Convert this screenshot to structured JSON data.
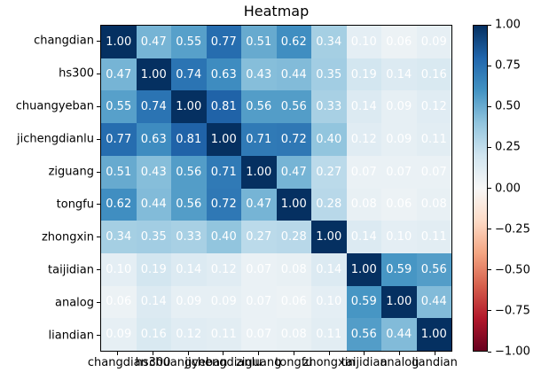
{
  "figure": {
    "background": "#ffffff"
  },
  "chart_data": {
    "type": "heatmap",
    "title": "Heatmap",
    "xlabel": "",
    "ylabel": "",
    "categories": [
      "changdian",
      "hs300",
      "chuangyeban",
      "jichengdianlu",
      "ziguang",
      "tongfu",
      "zhongxin",
      "taijidian",
      "analog",
      "liandian"
    ],
    "matrix": [
      [
        1.0,
        0.47,
        0.55,
        0.77,
        0.51,
        0.62,
        0.34,
        0.1,
        0.06,
        0.09
      ],
      [
        0.47,
        1.0,
        0.74,
        0.63,
        0.43,
        0.44,
        0.35,
        0.19,
        0.14,
        0.16
      ],
      [
        0.55,
        0.74,
        1.0,
        0.81,
        0.56,
        0.56,
        0.33,
        0.14,
        0.09,
        0.12
      ],
      [
        0.77,
        0.63,
        0.81,
        1.0,
        0.71,
        0.72,
        0.4,
        0.12,
        0.09,
        0.11
      ],
      [
        0.51,
        0.43,
        0.56,
        0.71,
        1.0,
        0.47,
        0.27,
        0.07,
        0.07,
        0.07
      ],
      [
        0.62,
        0.44,
        0.56,
        0.72,
        0.47,
        1.0,
        0.28,
        0.08,
        0.06,
        0.08
      ],
      [
        0.34,
        0.35,
        0.33,
        0.4,
        0.27,
        0.28,
        1.0,
        0.14,
        0.1,
        0.11
      ],
      [
        0.1,
        0.19,
        0.14,
        0.12,
        0.07,
        0.08,
        0.14,
        1.0,
        0.59,
        0.56
      ],
      [
        0.06,
        0.14,
        0.09,
        0.09,
        0.07,
        0.06,
        0.1,
        0.59,
        1.0,
        0.44
      ],
      [
        0.09,
        0.16,
        0.12,
        0.11,
        0.07,
        0.08,
        0.11,
        0.56,
        0.44,
        1.0
      ]
    ],
    "vmin": -1,
    "vmax": 1,
    "colormap": "RdBu",
    "colormap_stops": [
      "#67001f",
      "#b2182b",
      "#d6604d",
      "#f4a582",
      "#fddbc7",
      "#f7f7f7",
      "#d1e5f0",
      "#92c5de",
      "#4393c3",
      "#2166ac",
      "#053061"
    ],
    "annotation_color": "#ffffff",
    "grid": false,
    "colorbar": {
      "position": "right",
      "ticks": [
        1.0,
        0.75,
        0.5,
        0.25,
        0.0,
        -0.25,
        -0.5,
        -0.75,
        -1.0
      ],
      "tick_labels": [
        "1.00",
        "0.75",
        "0.50",
        "0.25",
        "0.00",
        "−0.25",
        "−0.50",
        "−0.75",
        "−1.00"
      ]
    }
  }
}
